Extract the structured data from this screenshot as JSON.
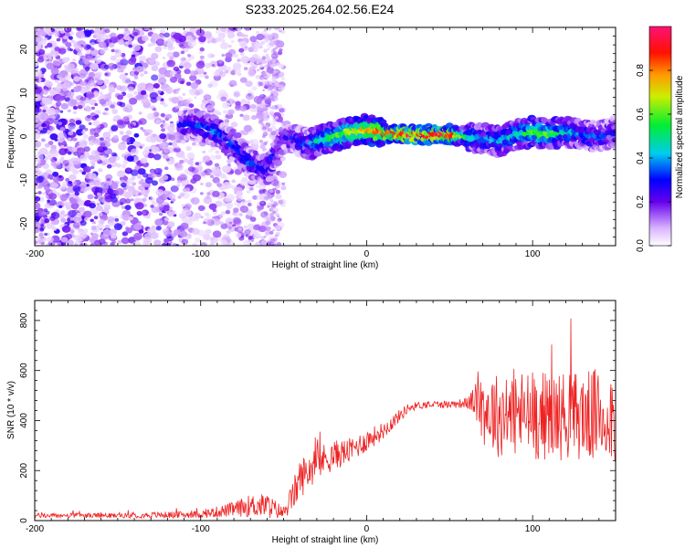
{
  "title": "S233.2025.264.02.56.E24",
  "chart_data": [
    {
      "type": "heatmap",
      "xlabel": "Height of straight line (km)",
      "ylabel": "Frequency (Hz)",
      "xlim": [
        -200,
        150
      ],
      "ylim": [
        -25,
        25
      ],
      "x_ticks": [
        -200,
        -100,
        0,
        100
      ],
      "y_ticks": [
        -20,
        -10,
        0,
        10,
        20
      ],
      "x_tick_labels": [
        "-200",
        "-100",
        "0",
        "100"
      ],
      "y_tick_labels": [
        "-20",
        "-10",
        "0",
        "10",
        "20"
      ],
      "colorbar": {
        "label": "Normalized spectral amplitude",
        "range": [
          0,
          1
        ],
        "ticks": [
          0.0,
          0.2,
          0.4,
          0.6,
          0.8
        ],
        "tick_labels": [
          "0.0",
          "0.2",
          "0.4",
          "0.6",
          "0.8"
        ]
      },
      "ridge": {
        "description_points_x": [
          -110,
          -100,
          -90,
          -80,
          -70,
          -60,
          -50,
          -40,
          -35,
          -30,
          -20,
          -10,
          0,
          10,
          20,
          30,
          40,
          50,
          60,
          70,
          80,
          90,
          100,
          110,
          120,
          130,
          140,
          150
        ],
        "frequency": [
          3,
          2.5,
          1,
          -2,
          -6,
          -8,
          0,
          -1,
          -2,
          -1,
          0,
          1,
          1.5,
          1,
          0.5,
          0.5,
          0.5,
          0.5,
          0,
          -0.5,
          -1,
          0.5,
          1,
          0.5,
          1,
          0.5,
          0,
          1
        ],
        "amplitude": [
          0.25,
          0.3,
          0.35,
          0.3,
          0.3,
          0.3,
          0.2,
          0.3,
          0.3,
          0.45,
          0.55,
          0.65,
          0.75,
          0.85,
          0.9,
          0.95,
          0.95,
          0.92,
          0.5,
          0.35,
          0.4,
          0.45,
          0.6,
          0.55,
          0.45,
          0.35,
          0.3,
          0.3
        ]
      }
    },
    {
      "type": "line",
      "xlabel": "Height of straight line (km)",
      "ylabel": "SNR (10 * v/v)",
      "xlim": [
        -200,
        150
      ],
      "ylim": [
        0,
        880
      ],
      "x_ticks": [
        -200,
        -100,
        0,
        100
      ],
      "y_ticks": [
        0,
        200,
        400,
        600,
        800
      ],
      "x_tick_labels": [
        "-200",
        "-100",
        "0",
        "100"
      ],
      "y_tick_labels": [
        "0",
        "200",
        "400",
        "600",
        "800"
      ],
      "series": [
        {
          "name": "SNR",
          "color": "#ee2222",
          "envelope_x": [
            -200,
            -150,
            -100,
            -80,
            -70,
            -60,
            -50,
            -45,
            -40,
            -30,
            -20,
            -10,
            0,
            10,
            20,
            25,
            30,
            40,
            50,
            60,
            65,
            70,
            80,
            90,
            100,
            110,
            120,
            130,
            140,
            150
          ],
          "envelope_mean": [
            20,
            20,
            25,
            45,
            60,
            60,
            30,
            90,
            170,
            230,
            260,
            280,
            320,
            360,
            420,
            450,
            460,
            465,
            465,
            470,
            480,
            450,
            420,
            430,
            420,
            420,
            420,
            420,
            420,
            420
          ],
          "envelope_spread": [
            10,
            10,
            15,
            30,
            45,
            50,
            25,
            60,
            80,
            70,
            60,
            50,
            45,
            35,
            25,
            20,
            15,
            15,
            15,
            20,
            60,
            150,
            170,
            180,
            180,
            180,
            180,
            180,
            190,
            200
          ]
        }
      ]
    }
  ]
}
